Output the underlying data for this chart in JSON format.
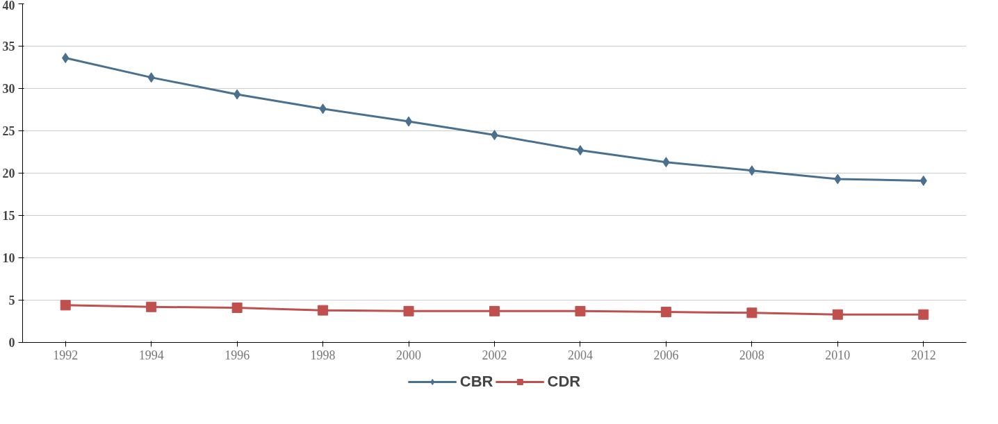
{
  "chart_data": {
    "type": "line",
    "categories": [
      "1992",
      "1994",
      "1996",
      "1998",
      "2000",
      "2002",
      "2004",
      "2006",
      "2008",
      "2010",
      "2012"
    ],
    "series": [
      {
        "name": "CBR",
        "color": "#4a7090",
        "marker": "diamond",
        "values": [
          33.6,
          31.3,
          29.3,
          27.6,
          26.1,
          24.5,
          22.7,
          21.3,
          20.3,
          19.3,
          19.1
        ]
      },
      {
        "name": "CDR",
        "color": "#c0504d",
        "marker": "square",
        "values": [
          4.4,
          4.2,
          4.1,
          3.8,
          3.7,
          3.7,
          3.7,
          3.6,
          3.5,
          3.3,
          3.3
        ]
      }
    ],
    "ylim": [
      0,
      40
    ],
    "yticks": [
      0,
      5,
      10,
      15,
      20,
      25,
      30,
      35,
      40
    ],
    "grid": "y",
    "legend": "bottom"
  }
}
